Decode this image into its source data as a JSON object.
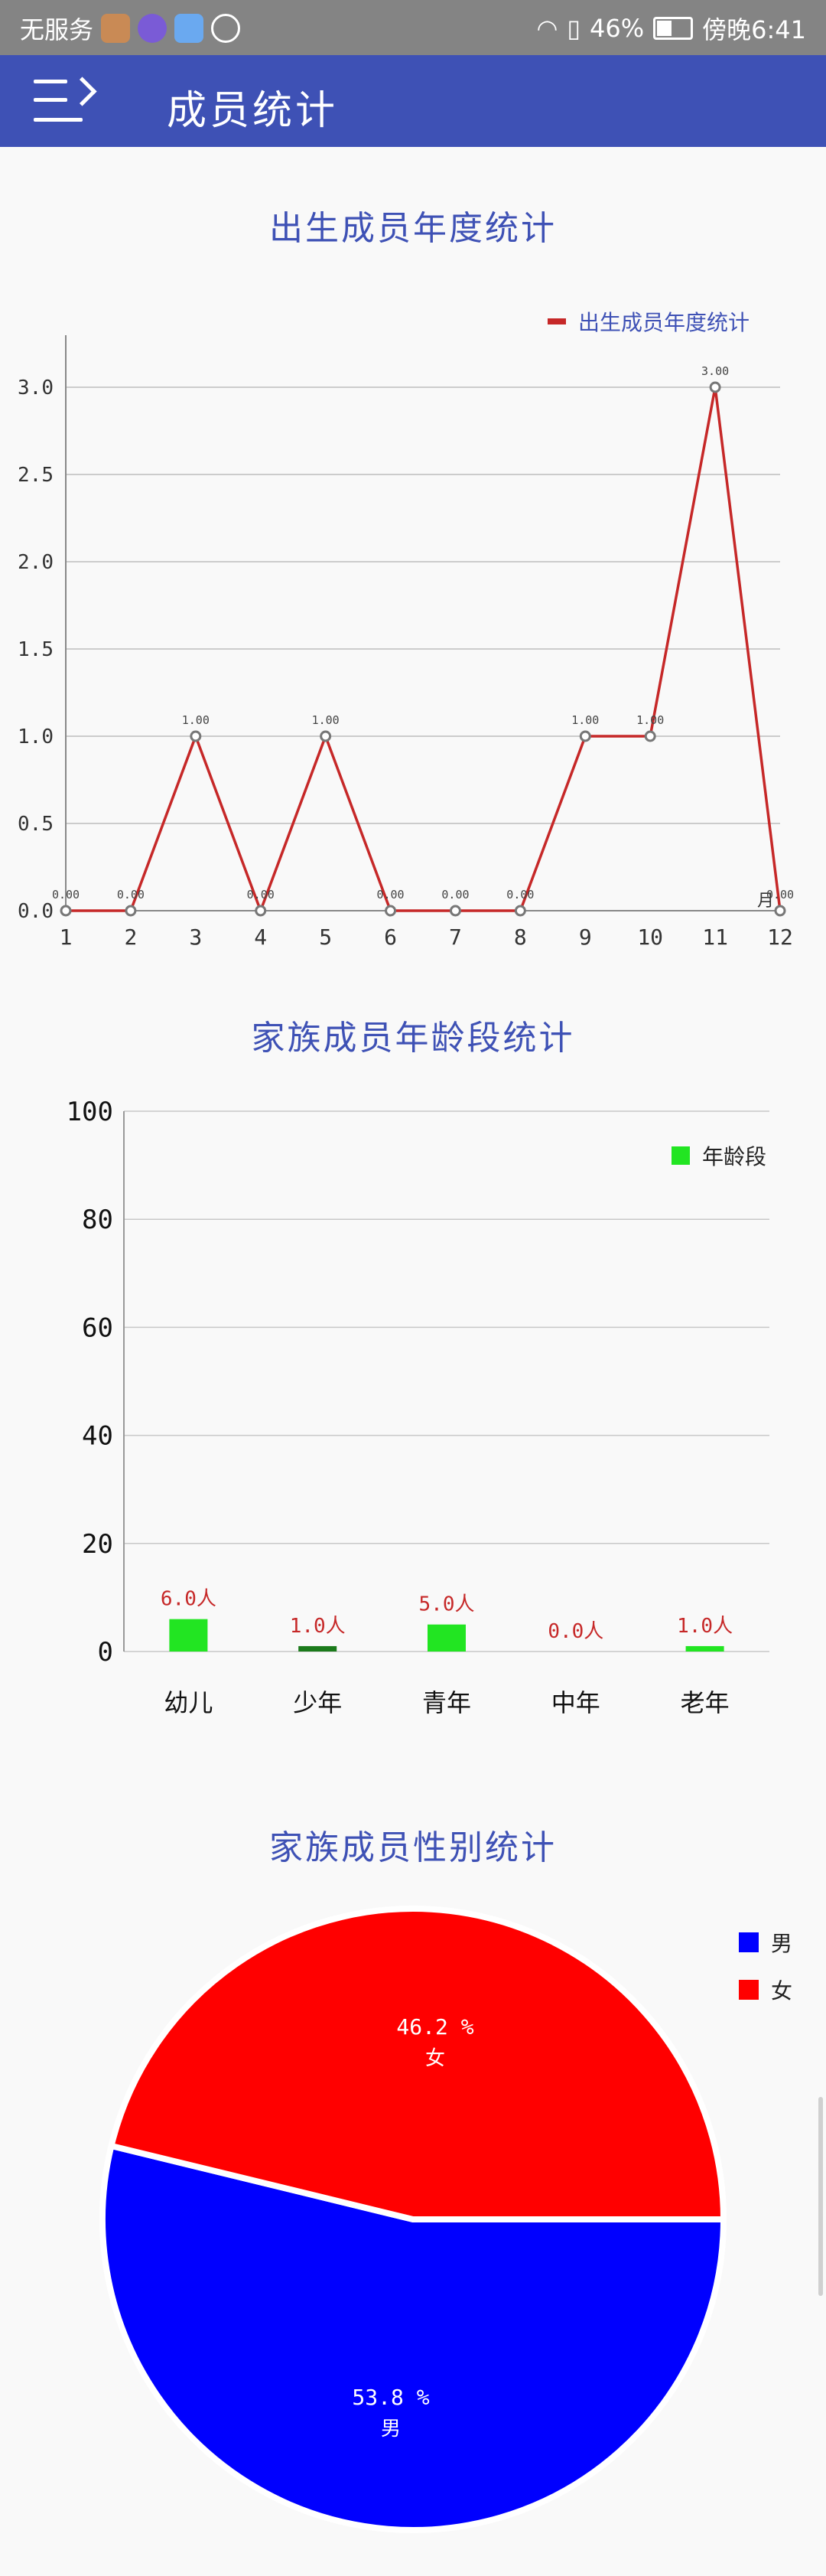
{
  "status_bar": {
    "carrier": "无服务",
    "battery": "46%",
    "time": "傍晚6:41",
    "battery_level": 0.46
  },
  "app_bar": {
    "title": "成员统计",
    "menu_icon": "menu-icon"
  },
  "colors": {
    "primary": "#3e51b5",
    "line": "#c62828",
    "bar": "#22e522",
    "bar_dark": "#1b7a1b",
    "male": "#0000ff",
    "female": "#ff0000"
  },
  "chart_data": [
    {
      "type": "line",
      "title": "出生成员年度统计",
      "legend": [
        "出生成员年度统计"
      ],
      "legend_position": "top-right",
      "x": [
        1,
        2,
        3,
        4,
        5,
        6,
        7,
        8,
        9,
        10,
        11,
        12
      ],
      "x_unit": "月",
      "series": [
        {
          "name": "出生成员年度统计",
          "values": [
            0,
            0,
            1,
            0,
            1,
            0,
            0,
            0,
            1,
            1,
            3,
            0
          ]
        }
      ],
      "data_labels": [
        "0.00",
        "0.00",
        "1.00",
        "0.00",
        "1.00",
        "0.00",
        "0.00",
        "0.00",
        "1.00",
        "1.00",
        "3.00",
        "0.00"
      ],
      "y_ticks": [
        "0.0",
        "0.5",
        "1.0",
        "1.5",
        "2.0",
        "2.5",
        "3.0"
      ],
      "ylim": [
        0,
        3.0
      ],
      "grid": true
    },
    {
      "type": "bar",
      "title": "家族成员年龄段统计",
      "legend": [
        "年龄段"
      ],
      "legend_position": "top-right",
      "categories": [
        "幼儿",
        "少年",
        "青年",
        "中年",
        "老年"
      ],
      "series": [
        {
          "name": "年龄段",
          "values": [
            6,
            1,
            5,
            0,
            1
          ]
        }
      ],
      "data_labels": [
        "6.0人",
        "1.0人",
        "5.0人",
        "0.0人",
        "1.0人"
      ],
      "y_ticks": [
        "0",
        "20",
        "40",
        "60",
        "80",
        "100"
      ],
      "ylim": [
        0,
        100
      ],
      "grid": true
    },
    {
      "type": "pie",
      "title": "家族成员性别统计",
      "legend": [
        "男",
        "女"
      ],
      "legend_position": "top-right",
      "slices": [
        {
          "name": "男",
          "percent": 53.8,
          "label": "53.8 %"
        },
        {
          "name": "女",
          "percent": 46.2,
          "label": "46.2 %"
        }
      ]
    }
  ]
}
